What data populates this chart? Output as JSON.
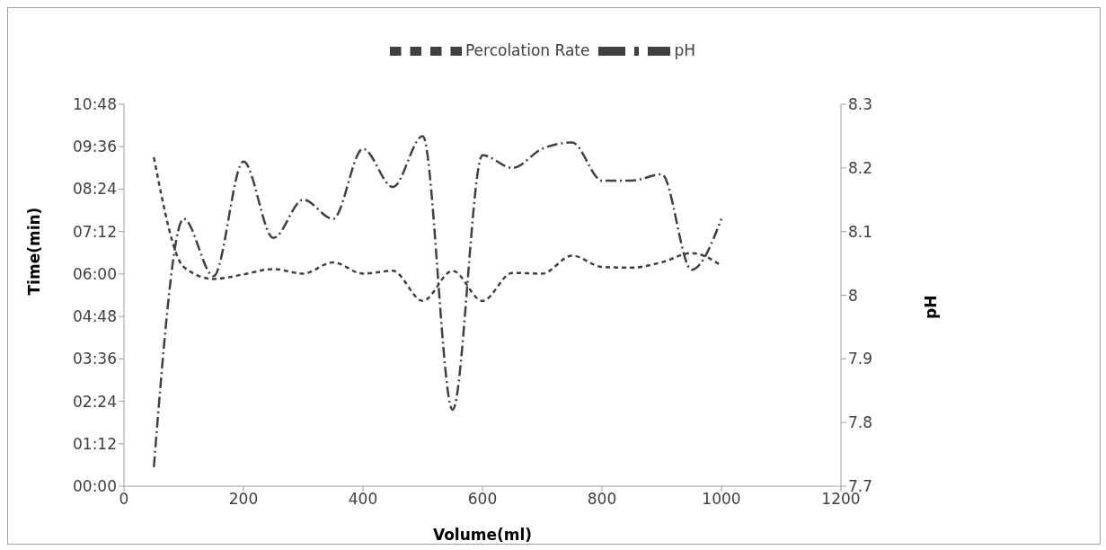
{
  "chart_data": {
    "type": "line",
    "xlabel": "Volume(ml)",
    "ylabel": "Time(min)",
    "y2label": "pH",
    "x": [
      50,
      100,
      150,
      200,
      250,
      300,
      350,
      400,
      450,
      500,
      550,
      600,
      650,
      700,
      750,
      800,
      850,
      900,
      950,
      1000
    ],
    "series": [
      {
        "name": "Percolation Rate",
        "color": "#404040",
        "line_style": "dashed",
        "values": [
          9.3,
          6.2,
          5.86,
          5.99,
          6.14,
          6.01,
          6.33,
          6.01,
          6.09,
          5.24,
          6.09,
          5.24,
          6.03,
          6.01,
          6.52,
          6.2,
          6.18,
          6.33,
          6.59,
          6.24
        ]
      },
      {
        "name": "pH",
        "color": "#404040",
        "line_style": "dashdot",
        "axis": "y2",
        "values": [
          7.73,
          8.12,
          8.03,
          8.21,
          8.09,
          8.15,
          8.12,
          8.23,
          8.17,
          8.25,
          7.82,
          8.22,
          8.2,
          8.23,
          8.24,
          8.18,
          8.18,
          8.19,
          8.04,
          8.12
        ]
      }
    ],
    "xlim": [
      0,
      1200
    ],
    "xticks": [
      0,
      200,
      400,
      600,
      800,
      1000,
      1200
    ],
    "ylim": [
      0,
      10.8
    ],
    "yticks": [
      {
        "value": 0,
        "label": "00:00"
      },
      {
        "value": 1.2,
        "label": "01:12"
      },
      {
        "value": 2.4,
        "label": "02:24"
      },
      {
        "value": 3.6,
        "label": "03:36"
      },
      {
        "value": 4.8,
        "label": "04:48"
      },
      {
        "value": 6,
        "label": "06:00"
      },
      {
        "value": 7.2,
        "label": "07:12"
      },
      {
        "value": 8.4,
        "label": "08:24"
      },
      {
        "value": 9.6,
        "label": "09:36"
      },
      {
        "value": 10.8,
        "label": "10:48"
      }
    ],
    "y2lim": [
      7.7,
      8.3
    ],
    "y2ticks": [
      7.7,
      7.8,
      7.9,
      8,
      8.1,
      8.2,
      8.3
    ],
    "grid": false,
    "legend": "top",
    "marker": "none"
  }
}
